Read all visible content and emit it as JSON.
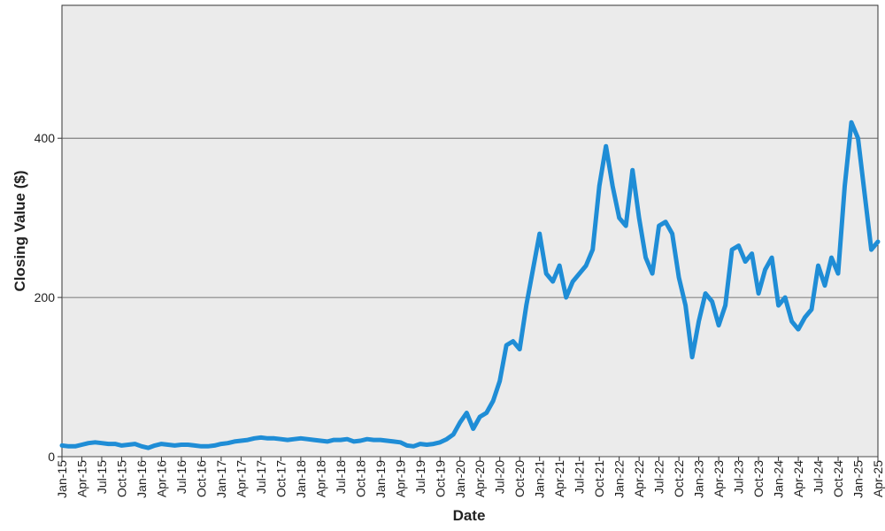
{
  "chart_data": {
    "type": "line",
    "x_label": "Date",
    "y_label": "Closing Value ($)",
    "x": [
      "2015-01",
      "2015-02",
      "2015-03",
      "2015-04",
      "2015-05",
      "2015-06",
      "2015-07",
      "2015-08",
      "2015-09",
      "2015-10",
      "2015-11",
      "2015-12",
      "2016-01",
      "2016-02",
      "2016-03",
      "2016-04",
      "2016-05",
      "2016-06",
      "2016-07",
      "2016-08",
      "2016-09",
      "2016-10",
      "2016-11",
      "2016-12",
      "2017-01",
      "2017-02",
      "2017-03",
      "2017-04",
      "2017-05",
      "2017-06",
      "2017-07",
      "2017-08",
      "2017-09",
      "2017-10",
      "2017-11",
      "2017-12",
      "2018-01",
      "2018-02",
      "2018-03",
      "2018-04",
      "2018-05",
      "2018-06",
      "2018-07",
      "2018-08",
      "2018-09",
      "2018-10",
      "2018-11",
      "2018-12",
      "2019-01",
      "2019-02",
      "2019-03",
      "2019-04",
      "2019-05",
      "2019-06",
      "2019-07",
      "2019-08",
      "2019-09",
      "2019-10",
      "2019-11",
      "2019-12",
      "2020-01",
      "2020-02",
      "2020-03",
      "2020-04",
      "2020-05",
      "2020-06",
      "2020-07",
      "2020-08",
      "2020-09",
      "2020-10",
      "2020-11",
      "2020-12",
      "2021-01",
      "2021-02",
      "2021-03",
      "2021-04",
      "2021-05",
      "2021-06",
      "2021-07",
      "2021-08",
      "2021-09",
      "2021-10",
      "2021-11",
      "2021-12",
      "2022-01",
      "2022-02",
      "2022-03",
      "2022-04",
      "2022-05",
      "2022-06",
      "2022-07",
      "2022-08",
      "2022-09",
      "2022-10",
      "2022-11",
      "2022-12",
      "2023-01",
      "2023-02",
      "2023-03",
      "2023-04",
      "2023-05",
      "2023-06",
      "2023-07",
      "2023-08",
      "2023-09",
      "2023-10",
      "2023-11",
      "2023-12",
      "2024-01",
      "2024-02",
      "2024-03",
      "2024-04",
      "2024-05",
      "2024-06",
      "2024-07",
      "2024-08",
      "2024-09",
      "2024-10",
      "2024-11",
      "2024-12",
      "2025-01",
      "2025-02",
      "2025-03",
      "2025-04"
    ],
    "series": [
      {
        "color": "#1f8dd6",
        "values": [
          14,
          13,
          13,
          15,
          17,
          18,
          17,
          16,
          16,
          14,
          15,
          16,
          13,
          11,
          14,
          16,
          15,
          14,
          15,
          15,
          14,
          13,
          13,
          14,
          16,
          17,
          19,
          20,
          21,
          23,
          24,
          23,
          23,
          22,
          21,
          22,
          23,
          22,
          21,
          20,
          19,
          21,
          21,
          22,
          19,
          20,
          22,
          21,
          21,
          20,
          19,
          18,
          14,
          13,
          16,
          15,
          16,
          18,
          22,
          28,
          43,
          55,
          35,
          50,
          55,
          70,
          95,
          140,
          145,
          135,
          190,
          235,
          280,
          230,
          220,
          240,
          200,
          220,
          230,
          240,
          260,
          340,
          390,
          340,
          300,
          290,
          360,
          300,
          250,
          230,
          290,
          295,
          280,
          225,
          190,
          125,
          170,
          205,
          195,
          165,
          190,
          260,
          265,
          245,
          255,
          205,
          235,
          250,
          190,
          200,
          170,
          160,
          175,
          185,
          240,
          215,
          250,
          230,
          340,
          420,
          400,
          330,
          260,
          270
        ]
      }
    ],
    "xlim": [
      "2015-01",
      "2025-04"
    ],
    "xticks": [
      {
        "value": "2015-01",
        "label": "Jan-15"
      },
      {
        "value": "2015-04",
        "label": "Apr-15"
      },
      {
        "value": "2015-07",
        "label": "Jul-15"
      },
      {
        "value": "2015-10",
        "label": "Oct-15"
      },
      {
        "value": "2016-01",
        "label": "Jan-16"
      },
      {
        "value": "2016-04",
        "label": "Apr-16"
      },
      {
        "value": "2016-07",
        "label": "Jul-16"
      },
      {
        "value": "2016-10",
        "label": "Oct-16"
      },
      {
        "value": "2017-01",
        "label": "Jan-17"
      },
      {
        "value": "2017-04",
        "label": "Apr-17"
      },
      {
        "value": "2017-07",
        "label": "Jul-17"
      },
      {
        "value": "2017-10",
        "label": "Oct-17"
      },
      {
        "value": "2018-01",
        "label": "Jan-18"
      },
      {
        "value": "2018-04",
        "label": "Apr-18"
      },
      {
        "value": "2018-07",
        "label": "Jul-18"
      },
      {
        "value": "2018-10",
        "label": "Oct-18"
      },
      {
        "value": "2019-01",
        "label": "Jan-19"
      },
      {
        "value": "2019-04",
        "label": "Apr-19"
      },
      {
        "value": "2019-07",
        "label": "Jul-19"
      },
      {
        "value": "2019-10",
        "label": "Oct-19"
      },
      {
        "value": "2020-01",
        "label": "Jan-20"
      },
      {
        "value": "2020-04",
        "label": "Apr-20"
      },
      {
        "value": "2020-07",
        "label": "Jul-20"
      },
      {
        "value": "2020-10",
        "label": "Oct-20"
      },
      {
        "value": "2021-01",
        "label": "Jan-21"
      },
      {
        "value": "2021-04",
        "label": "Apr-21"
      },
      {
        "value": "2021-07",
        "label": "Jul-21"
      },
      {
        "value": "2021-10",
        "label": "Oct-21"
      },
      {
        "value": "2022-01",
        "label": "Jan-22"
      },
      {
        "value": "2022-04",
        "label": "Apr-22"
      },
      {
        "value": "2022-07",
        "label": "Jul-22"
      },
      {
        "value": "2022-10",
        "label": "Oct-22"
      },
      {
        "value": "2023-01",
        "label": "Jan-23"
      },
      {
        "value": "2023-04",
        "label": "Apr-23"
      },
      {
        "value": "2023-07",
        "label": "Jul-23"
      },
      {
        "value": "2023-10",
        "label": "Oct-23"
      },
      {
        "value": "2024-01",
        "label": "Jan-24"
      },
      {
        "value": "2024-04",
        "label": "Apr-24"
      },
      {
        "value": "2024-07",
        "label": "Jul-24"
      },
      {
        "value": "2024-10",
        "label": "Oct-24"
      },
      {
        "value": "2025-01",
        "label": "Jan-25"
      },
      {
        "value": "2025-04",
        "label": "Apr-25"
      }
    ],
    "ylim": [
      0,
      567
    ],
    "yticks": [
      0,
      200,
      400
    ],
    "grid": true
  }
}
